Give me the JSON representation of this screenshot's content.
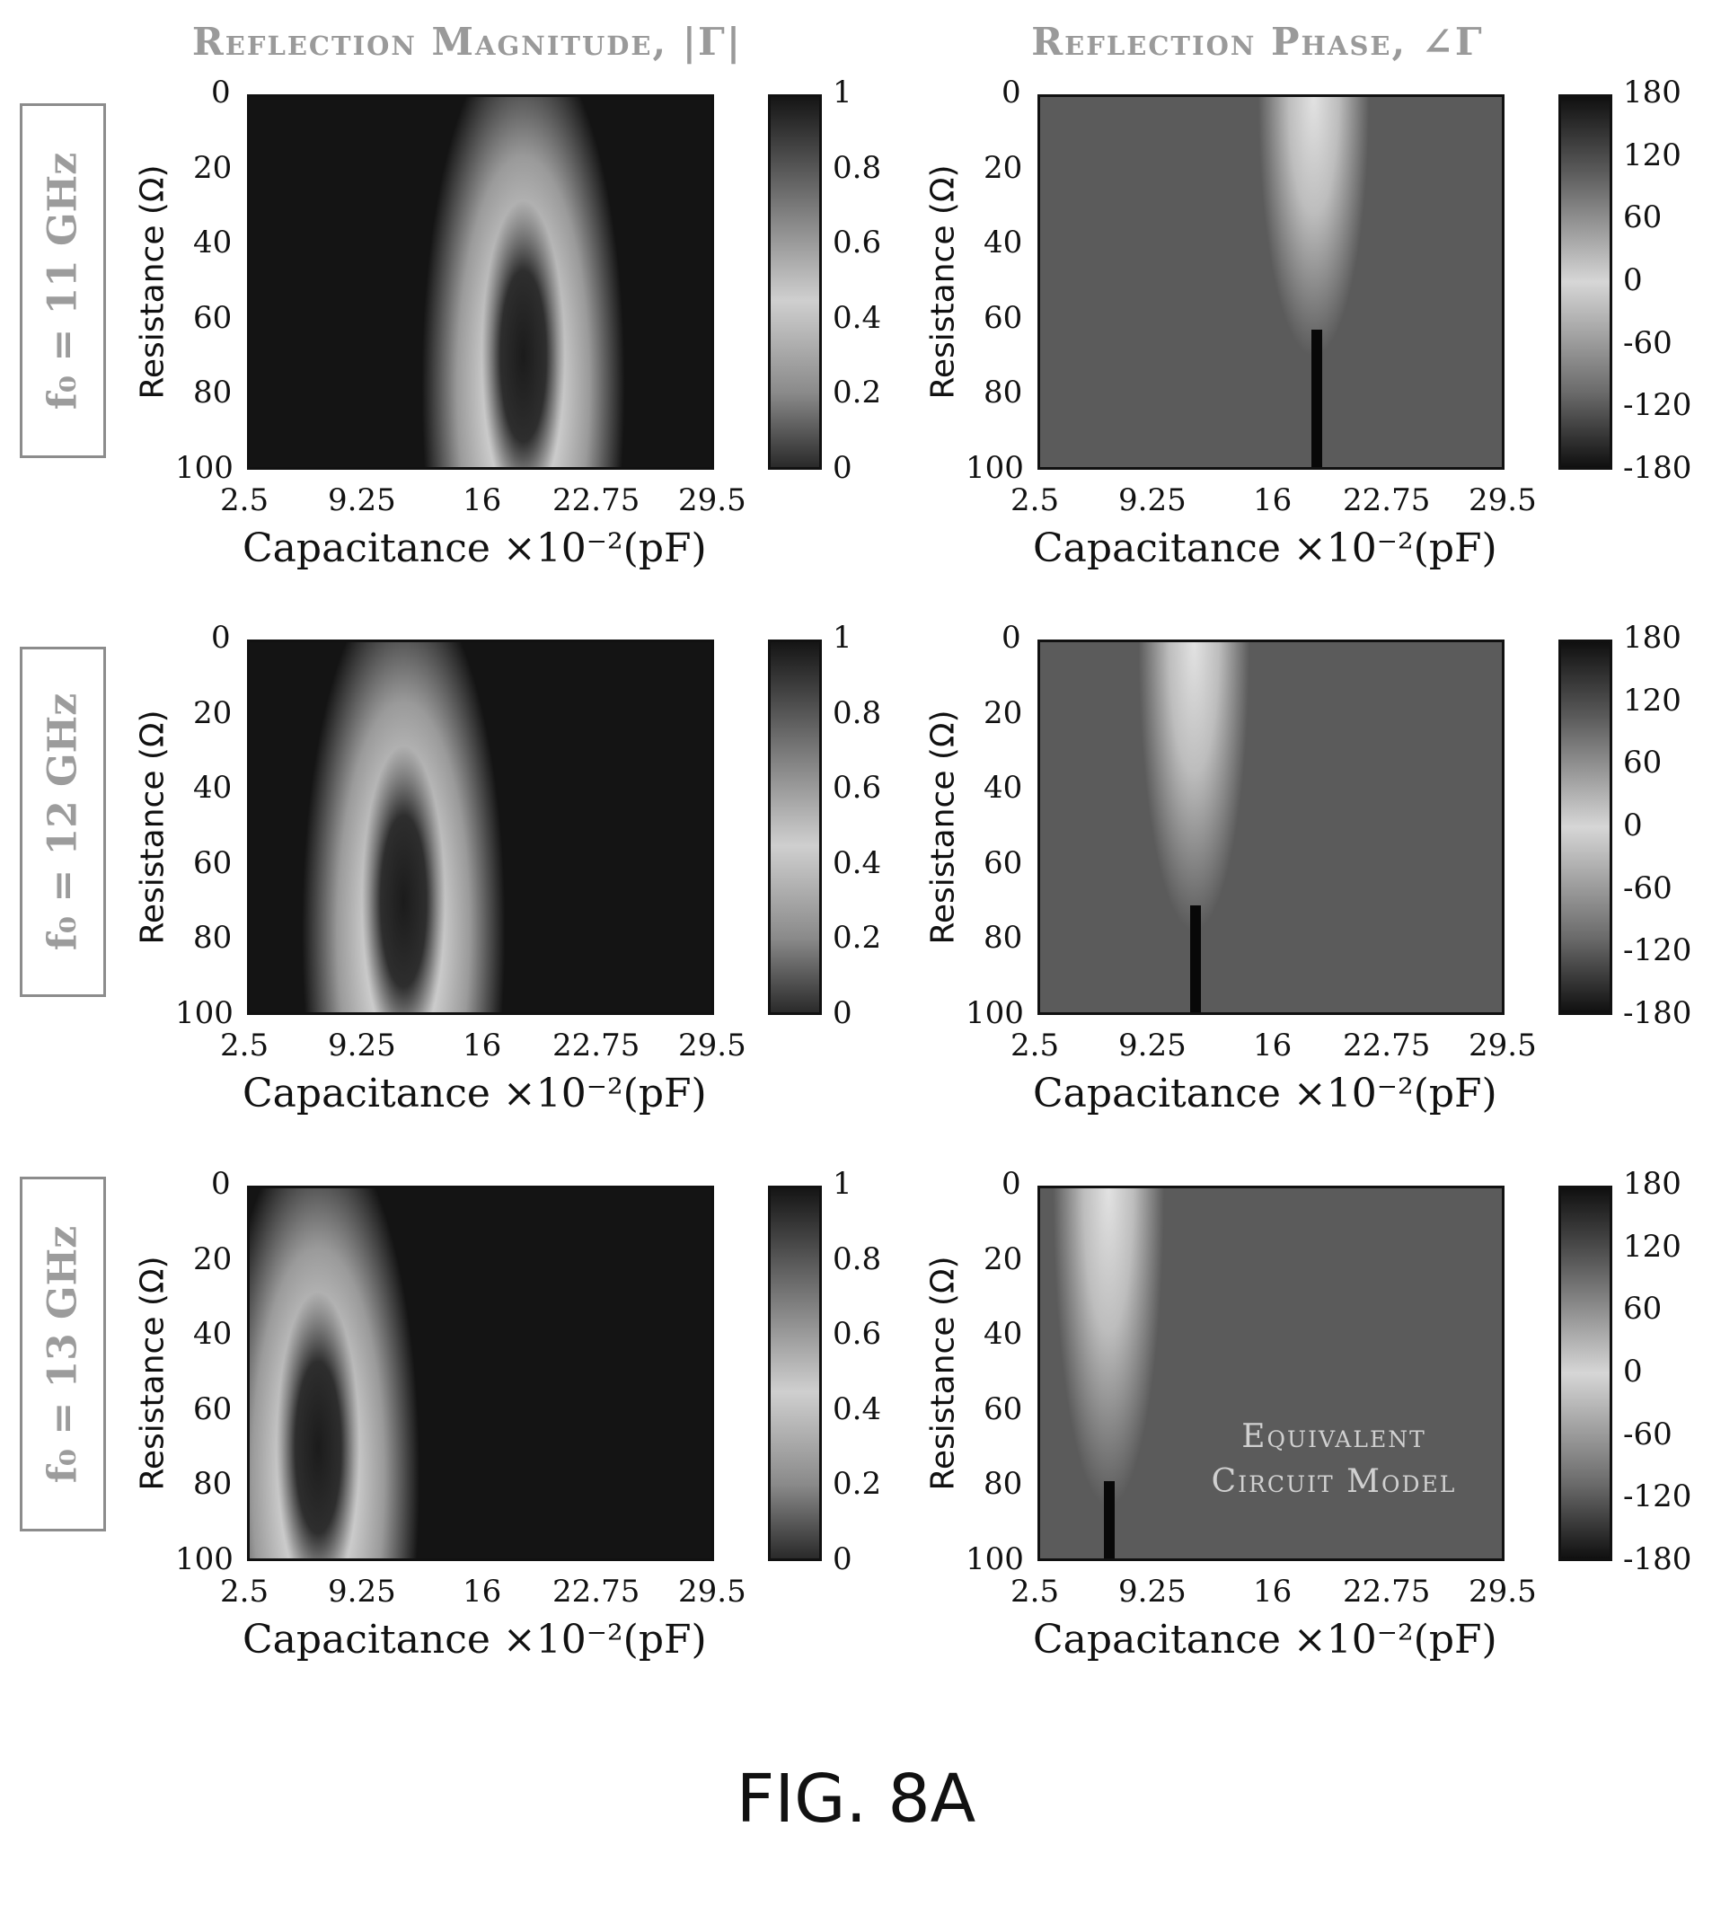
{
  "figure_label": "FIG. 8A",
  "columns": [
    {
      "title": "Reflection Magnitude, |Γ|"
    },
    {
      "title": "Reflection Phase, ∠Γ"
    }
  ],
  "rows": [
    {
      "label": "f₀ = 11 GHz"
    },
    {
      "label": "f₀ = 12 GHz"
    },
    {
      "label": "f₀ = 13 GHz"
    }
  ],
  "annotation": {
    "line1": "Equivalent",
    "line2": "Circuit Model"
  },
  "chart_data": [
    {
      "type": "heatmap",
      "row": 0,
      "col": 0,
      "frequency_ghz": 11,
      "quantity": "magnitude",
      "xlabel": "Capacitance ×10⁻²(pF)",
      "ylabel": "Resistance (Ω)",
      "xticks": [
        "2.5",
        "9.25",
        "16",
        "22.75",
        "29.5"
      ],
      "yticks": [
        "0",
        "20",
        "40",
        "60",
        "80",
        "100"
      ],
      "xlim": [
        2.5,
        29.5
      ],
      "ylim": [
        0,
        100
      ],
      "colorbar": [
        0,
        1
      ],
      "colorbar_ticks": [
        "0",
        "0.2",
        "0.4",
        "0.6",
        "0.8",
        "1"
      ],
      "resonance_capacitance": 18.5,
      "min_point": {
        "x": 18.5,
        "y": 60
      }
    },
    {
      "type": "heatmap",
      "row": 0,
      "col": 1,
      "frequency_ghz": 11,
      "quantity": "phase",
      "xlabel": "Capacitance ×10⁻²(pF)",
      "ylabel": "Resistance (Ω)",
      "xticks": [
        "2.5",
        "9.25",
        "16",
        "22.75",
        "29.5"
      ],
      "yticks": [
        "0",
        "20",
        "40",
        "60",
        "80",
        "100"
      ],
      "xlim": [
        2.5,
        29.5
      ],
      "ylim": [
        0,
        100
      ],
      "colorbar": [
        -180,
        180
      ],
      "colorbar_ticks": [
        "180",
        "120",
        "60",
        "0",
        "-60",
        "-120",
        "-180"
      ],
      "resonance_capacitance": 18.5,
      "transition_resistance": 62
    },
    {
      "type": "heatmap",
      "row": 1,
      "col": 0,
      "frequency_ghz": 12,
      "quantity": "magnitude",
      "xlabel": "Capacitance ×10⁻²(pF)",
      "ylabel": "Resistance (Ω)",
      "xticks": [
        "2.5",
        "9.25",
        "16",
        "22.75",
        "29.5"
      ],
      "yticks": [
        "0",
        "20",
        "40",
        "60",
        "80",
        "100"
      ],
      "xlim": [
        2.5,
        29.5
      ],
      "ylim": [
        0,
        100
      ],
      "colorbar": [
        0,
        1
      ],
      "colorbar_ticks": [
        "0",
        "0.2",
        "0.4",
        "0.6",
        "0.8",
        "1"
      ],
      "resonance_capacitance": 11.5,
      "min_point": {
        "x": 11.5,
        "y": 70
      }
    },
    {
      "type": "heatmap",
      "row": 1,
      "col": 1,
      "frequency_ghz": 12,
      "quantity": "phase",
      "xlabel": "Capacitance ×10⁻²(pF)",
      "ylabel": "Resistance (Ω)",
      "xticks": [
        "2.5",
        "9.25",
        "16",
        "22.75",
        "29.5"
      ],
      "yticks": [
        "0",
        "20",
        "40",
        "60",
        "80",
        "100"
      ],
      "xlim": [
        2.5,
        29.5
      ],
      "ylim": [
        0,
        100
      ],
      "colorbar": [
        -180,
        180
      ],
      "colorbar_ticks": [
        "180",
        "120",
        "60",
        "0",
        "-60",
        "-120",
        "-180"
      ],
      "resonance_capacitance": 11.5,
      "transition_resistance": 70
    },
    {
      "type": "heatmap",
      "row": 2,
      "col": 0,
      "frequency_ghz": 13,
      "quantity": "magnitude",
      "xlabel": "Capacitance ×10⁻²(pF)",
      "ylabel": "Resistance (Ω)",
      "xticks": [
        "2.5",
        "9.25",
        "16",
        "22.75",
        "29.5"
      ],
      "yticks": [
        "0",
        "20",
        "40",
        "60",
        "80",
        "100"
      ],
      "xlim": [
        2.5,
        29.5
      ],
      "ylim": [
        0,
        100
      ],
      "colorbar": [
        0,
        1
      ],
      "colorbar_ticks": [
        "0",
        "0.2",
        "0.4",
        "0.6",
        "0.8",
        "1"
      ],
      "resonance_capacitance": 6.5,
      "min_point": {
        "x": 6.5,
        "y": 75
      }
    },
    {
      "type": "heatmap",
      "row": 2,
      "col": 1,
      "frequency_ghz": 13,
      "quantity": "phase",
      "xlabel": "Capacitance ×10⁻²(pF)",
      "ylabel": "Resistance (Ω)",
      "xticks": [
        "2.5",
        "9.25",
        "16",
        "22.75",
        "29.5"
      ],
      "yticks": [
        "0",
        "20",
        "40",
        "60",
        "80",
        "100"
      ],
      "xlim": [
        2.5,
        29.5
      ],
      "ylim": [
        0,
        100
      ],
      "colorbar": [
        -180,
        180
      ],
      "colorbar_ticks": [
        "180",
        "120",
        "60",
        "0",
        "-60",
        "-120",
        "-180"
      ],
      "resonance_capacitance": 6.5,
      "transition_resistance": 78
    }
  ]
}
